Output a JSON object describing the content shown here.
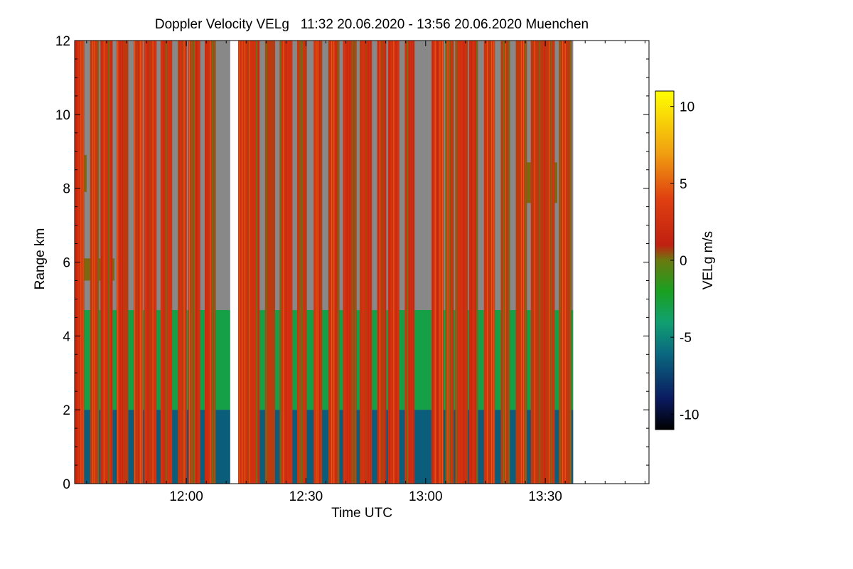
{
  "chart_data": {
    "type": "heatmap",
    "title": "Doppler Velocity VELg   11:32 20.06.2020 - 13:56 20.06.2020 Muenchen",
    "xlabel": "Time UTC",
    "ylabel": "Range km",
    "x_range_utc": [
      "11:32",
      "13:56"
    ],
    "y_range_km": [
      0,
      12
    ],
    "x_ticks": [
      {
        "value": "12:00",
        "label": "12:00"
      },
      {
        "value": "12:30",
        "label": "12:30"
      },
      {
        "value": "13:00",
        "label": "13:00"
      },
      {
        "value": "13:30",
        "label": "13:30"
      }
    ],
    "y_ticks": [
      {
        "value": 0,
        "label": "0"
      },
      {
        "value": 2,
        "label": "2"
      },
      {
        "value": 4,
        "label": "4"
      },
      {
        "value": 6,
        "label": "6"
      },
      {
        "value": 8,
        "label": "8"
      },
      {
        "value": 10,
        "label": "10"
      },
      {
        "value": 12,
        "label": "12"
      }
    ],
    "colorbar": {
      "label": "VELg m/s",
      "range": [
        -11,
        11
      ],
      "ticks": [
        {
          "value": 10,
          "label": "10"
        },
        {
          "value": 5,
          "label": "5"
        },
        {
          "value": 0,
          "label": "0"
        },
        {
          "value": -5,
          "label": "-5"
        },
        {
          "value": -10,
          "label": "-10"
        }
      ],
      "stops": [
        {
          "value": -11,
          "color": "#000000"
        },
        {
          "value": -9,
          "color": "#0a1a60"
        },
        {
          "value": -6,
          "color": "#0a6a80"
        },
        {
          "value": -4,
          "color": "#10a070"
        },
        {
          "value": -2,
          "color": "#1aa020"
        },
        {
          "value": 0,
          "color": "#6a7a10"
        },
        {
          "value": 1,
          "color": "#c02010"
        },
        {
          "value": 4,
          "color": "#e04010"
        },
        {
          "value": 7,
          "color": "#f0a010"
        },
        {
          "value": 11,
          "color": "#ffff00"
        }
      ]
    },
    "layers": [
      {
        "name": "boundary layer (0-2 km)",
        "top_km": 2.0,
        "velocity_ms": -6.5
      },
      {
        "name": "mid layer (2-4.7 km)",
        "top_km": 4.7,
        "velocity_ms": -3.0
      },
      {
        "name": "no signal above",
        "color": "#888888"
      }
    ],
    "elevated_patches": [
      {
        "t_start": "11:32",
        "t_end": "11:35",
        "bottom_km": 7.9,
        "top_km": 8.9,
        "velocity_ms": 0.2
      },
      {
        "t_start": "13:25",
        "t_end": "13:33",
        "bottom_km": 7.6,
        "top_km": 8.7,
        "velocity_ms": 0.2
      },
      {
        "t_start": "11:32",
        "t_end": "11:42",
        "bottom_km": 5.5,
        "top_km": 6.1,
        "velocity_ms": 0.2
      }
    ],
    "rain_streaks_utc": [
      "11:33",
      "11:37",
      "11:40",
      "11:44",
      "11:48",
      "11:51",
      "11:55",
      "11:59",
      "12:02",
      "12:06",
      "12:14",
      "12:17",
      "12:21",
      "12:25",
      "12:29",
      "12:33",
      "12:37",
      "12:41",
      "12:45",
      "12:49",
      "12:52",
      "12:56",
      "13:03",
      "13:06",
      "13:09",
      "13:12",
      "13:16",
      "13:20",
      "13:24",
      "13:28",
      "13:31",
      "13:35"
    ],
    "data_gaps_utc": [
      [
        "12:11",
        "12:13"
      ],
      [
        "13:37",
        "13:56"
      ]
    ]
  }
}
